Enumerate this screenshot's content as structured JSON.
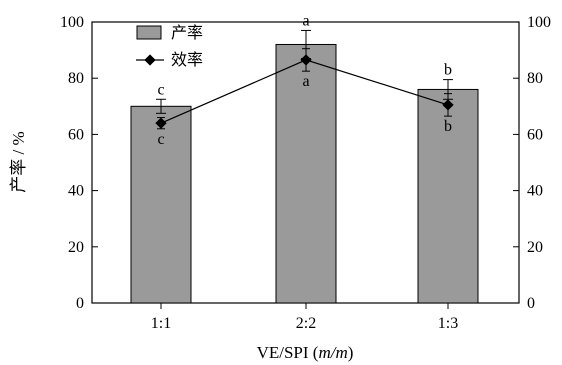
{
  "chart_data": {
    "type": "bar",
    "categories": [
      "1:1",
      "2:2",
      "1:3"
    ],
    "xlabel_main": "VE/SPI (",
    "xlabel_italic": "m/m",
    "xlabel_end": ")",
    "ylabel": "产率 / %",
    "ylim": [
      0,
      100
    ],
    "yticks": [
      "0",
      "20",
      "40",
      "60",
      "80",
      "100"
    ],
    "y2lim": [
      0,
      100
    ],
    "y2ticks": [
      "0",
      "20",
      "40",
      "60",
      "80",
      "100"
    ],
    "legend": {
      "placement": "top-left",
      "bar_label": "产率",
      "line_label": "效率"
    },
    "series": [
      {
        "name": "产率",
        "kind": "bar",
        "color": "#9a9a9a",
        "values": [
          70,
          92,
          76
        ],
        "errors": [
          2.5,
          5,
          3.5
        ],
        "labels": [
          "c",
          "a",
          "b"
        ]
      },
      {
        "name": "效率",
        "kind": "line",
        "color": "#000000",
        "values": [
          64,
          86.5,
          70.5
        ],
        "errors": [
          2,
          4,
          4
        ],
        "labels": [
          "c",
          "a",
          "b"
        ]
      }
    ]
  }
}
